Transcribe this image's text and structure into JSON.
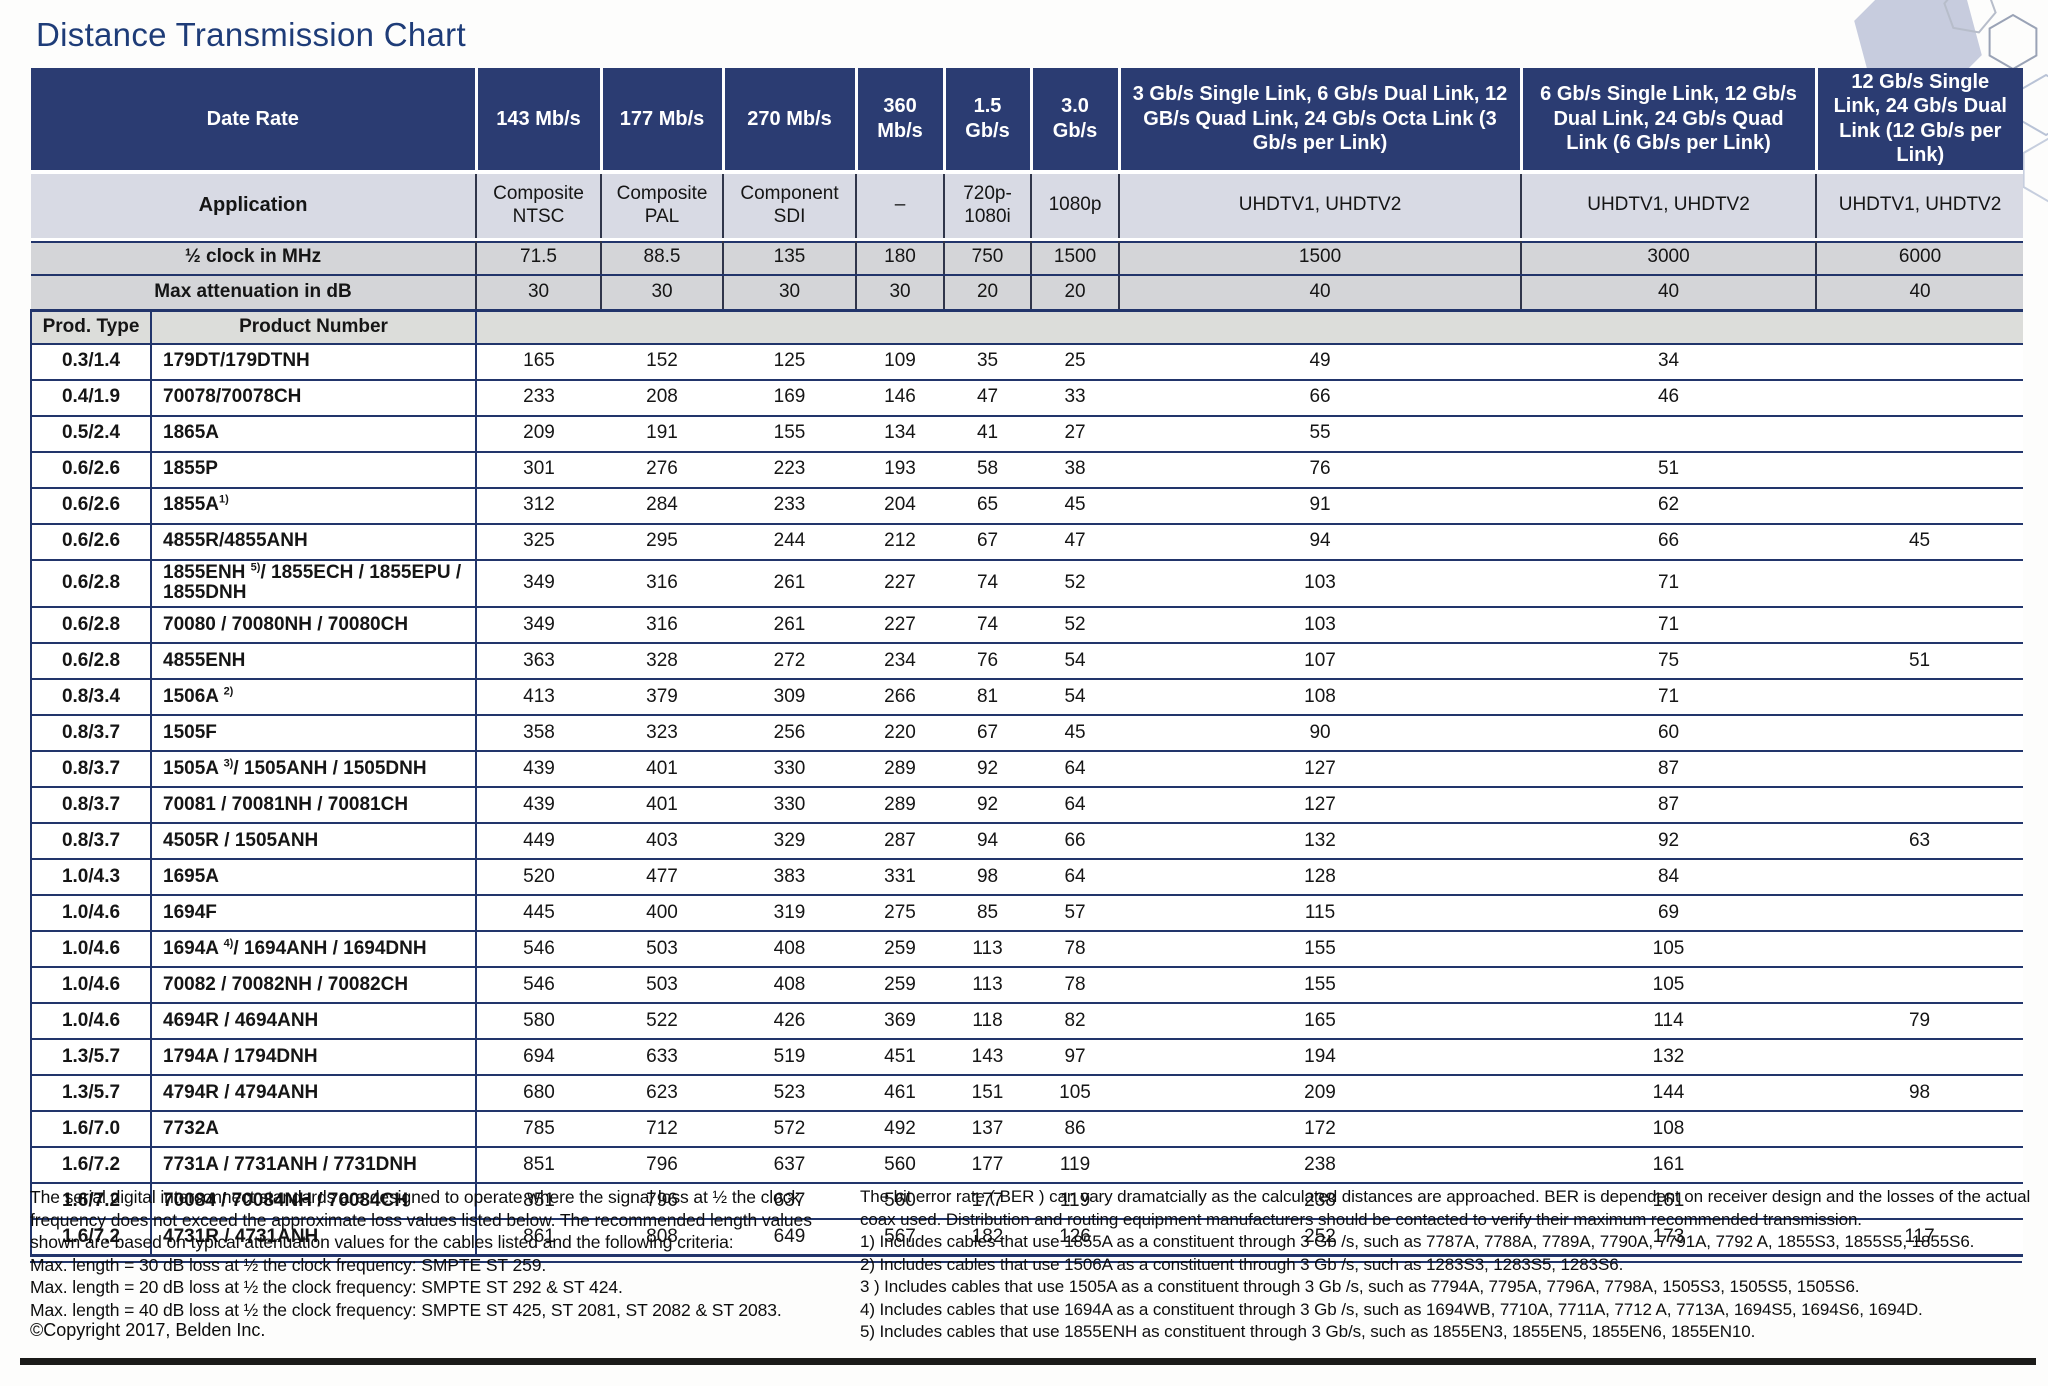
{
  "page": {
    "title": "Distance Transmission Chart"
  },
  "colors": {
    "header_navy": "#2b3c72",
    "rule_navy": "#22356b",
    "title_navy": "#1e3c78"
  },
  "table": {
    "header": {
      "date_rate_label": "Date Rate",
      "application_label": "Application",
      "half_clock_label": "½ clock in MHz",
      "max_atten_label": "Max attenuation in dB",
      "prod_type_label": "Prod. Type",
      "product_number_label": "Product Number",
      "columns": [
        {
          "rate": "143 Mb/s",
          "application": "Composite NTSC",
          "half_clock": "71.5",
          "max_atten": "30"
        },
        {
          "rate": "177 Mb/s",
          "application": "Composite PAL",
          "half_clock": "88.5",
          "max_atten": "30"
        },
        {
          "rate": "270 Mb/s",
          "application": "Component SDI",
          "half_clock": "135",
          "max_atten": "30"
        },
        {
          "rate": "360 Mb/s",
          "application": "–",
          "half_clock": "180",
          "max_atten": "30"
        },
        {
          "rate": "1.5 Gb/s",
          "application": "720p- 1080i",
          "half_clock": "750",
          "max_atten": "20"
        },
        {
          "rate": "3.0 Gb/s",
          "application": "1080p",
          "half_clock": "1500",
          "max_atten": "20"
        },
        {
          "rate": "3 Gb/s Single Link, 6 Gb/s Dual Link, 12 GB/s Quad Link, 24 Gb/s Octa Link (3 Gb/s per Link)",
          "application": "UHDTV1, UHDTV2",
          "half_clock": "1500",
          "max_atten": "40"
        },
        {
          "rate": "6 Gb/s Single Link, 12 Gb/s Dual Link, 24 Gb/s Quad Link (6 Gb/s per Link)",
          "application": "UHDTV1, UHDTV2",
          "half_clock": "3000",
          "max_atten": "40"
        },
        {
          "rate": "12 Gb/s Single Link, 24 Gb/s Dual Link (12 Gb/s per Link)",
          "application": "UHDTV1, UHDTV2",
          "half_clock": "6000",
          "max_atten": "40"
        }
      ]
    },
    "rows": [
      {
        "prod_type": "0.3/1.4",
        "product": {
          "pre": "179DT/179DTNH",
          "sup": "",
          "post": ""
        },
        "values": [
          "165",
          "152",
          "125",
          "109",
          "35",
          "25",
          "49",
          "34",
          ""
        ]
      },
      {
        "prod_type": "0.4/1.9",
        "product": {
          "pre": "70078/70078CH",
          "sup": "",
          "post": ""
        },
        "values": [
          "233",
          "208",
          "169",
          "146",
          "47",
          "33",
          "66",
          "46",
          ""
        ]
      },
      {
        "prod_type": "0.5/2.4",
        "product": {
          "pre": "1865A",
          "sup": "",
          "post": ""
        },
        "values": [
          "209",
          "191",
          "155",
          "134",
          "41",
          "27",
          "55",
          "",
          ""
        ]
      },
      {
        "prod_type": "0.6/2.6",
        "product": {
          "pre": "1855P",
          "sup": "",
          "post": ""
        },
        "values": [
          "301",
          "276",
          "223",
          "193",
          "58",
          "38",
          "76",
          "51",
          ""
        ]
      },
      {
        "prod_type": "0.6/2.6",
        "product": {
          "pre": "1855A",
          "sup": "1)",
          "post": ""
        },
        "values": [
          "312",
          "284",
          "233",
          "204",
          "65",
          "45",
          "91",
          "62",
          ""
        ]
      },
      {
        "prod_type": "0.6/2.6",
        "product": {
          "pre": "4855R/4855ANH",
          "sup": "",
          "post": ""
        },
        "values": [
          "325",
          "295",
          "244",
          "212",
          "67",
          "47",
          "94",
          "66",
          "45"
        ]
      },
      {
        "prod_type": "0.6/2.8",
        "product": {
          "pre": "1855ENH ",
          "sup": "5)",
          "post": "/ 1855ECH / 1855EPU / 1855DNH"
        },
        "values": [
          "349",
          "316",
          "261",
          "227",
          "74",
          "52",
          "103",
          "71",
          ""
        ]
      },
      {
        "prod_type": "0.6/2.8",
        "product": {
          "pre": "70080 / 70080NH / 70080CH",
          "sup": "",
          "post": ""
        },
        "values": [
          "349",
          "316",
          "261",
          "227",
          "74",
          "52",
          "103",
          "71",
          ""
        ]
      },
      {
        "prod_type": "0.6/2.8",
        "product": {
          "pre": "4855ENH",
          "sup": "",
          "post": ""
        },
        "values": [
          "363",
          "328",
          "272",
          "234",
          "76",
          "54",
          "107",
          "75",
          "51"
        ]
      },
      {
        "prod_type": "0.8/3.4",
        "product": {
          "pre": "1506A ",
          "sup": "2)",
          "post": ""
        },
        "values": [
          "413",
          "379",
          "309",
          "266",
          "81",
          "54",
          "108",
          "71",
          ""
        ]
      },
      {
        "prod_type": "0.8/3.7",
        "product": {
          "pre": "1505F",
          "sup": "",
          "post": ""
        },
        "values": [
          "358",
          "323",
          "256",
          "220",
          "67",
          "45",
          "90",
          "60",
          ""
        ]
      },
      {
        "prod_type": "0.8/3.7",
        "product": {
          "pre": "1505A ",
          "sup": "3)",
          "post": "/ 1505ANH / 1505DNH"
        },
        "values": [
          "439",
          "401",
          "330",
          "289",
          "92",
          "64",
          "127",
          "87",
          ""
        ]
      },
      {
        "prod_type": "0.8/3.7",
        "product": {
          "pre": "70081 / 70081NH / 70081CH",
          "sup": "",
          "post": ""
        },
        "values": [
          "439",
          "401",
          "330",
          "289",
          "92",
          "64",
          "127",
          "87",
          ""
        ]
      },
      {
        "prod_type": "0.8/3.7",
        "product": {
          "pre": "4505R / 1505ANH",
          "sup": "",
          "post": ""
        },
        "values": [
          "449",
          "403",
          "329",
          "287",
          "94",
          "66",
          "132",
          "92",
          "63"
        ]
      },
      {
        "prod_type": "1.0/4.3",
        "product": {
          "pre": "1695A",
          "sup": "",
          "post": ""
        },
        "values": [
          "520",
          "477",
          "383",
          "331",
          "98",
          "64",
          "128",
          "84",
          ""
        ]
      },
      {
        "prod_type": "1.0/4.6",
        "product": {
          "pre": "1694F",
          "sup": "",
          "post": ""
        },
        "values": [
          "445",
          "400",
          "319",
          "275",
          "85",
          "57",
          "115",
          "69",
          ""
        ]
      },
      {
        "prod_type": "1.0/4.6",
        "product": {
          "pre": "1694A ",
          "sup": "4)",
          "post": "/ 1694ANH / 1694DNH"
        },
        "values": [
          "546",
          "503",
          "408",
          "259",
          "113",
          "78",
          "155",
          "105",
          ""
        ]
      },
      {
        "prod_type": "1.0/4.6",
        "product": {
          "pre": "70082 / 70082NH / 70082CH",
          "sup": "",
          "post": ""
        },
        "values": [
          "546",
          "503",
          "408",
          "259",
          "113",
          "78",
          "155",
          "105",
          ""
        ]
      },
      {
        "prod_type": "1.0/4.6",
        "product": {
          "pre": "4694R / 4694ANH",
          "sup": "",
          "post": ""
        },
        "values": [
          "580",
          "522",
          "426",
          "369",
          "118",
          "82",
          "165",
          "114",
          "79"
        ]
      },
      {
        "prod_type": "1.3/5.7",
        "product": {
          "pre": "1794A / 1794DNH",
          "sup": "",
          "post": ""
        },
        "values": [
          "694",
          "633",
          "519",
          "451",
          "143",
          "97",
          "194",
          "132",
          ""
        ]
      },
      {
        "prod_type": "1.3/5.7",
        "product": {
          "pre": "4794R / 4794ANH",
          "sup": "",
          "post": ""
        },
        "values": [
          "680",
          "623",
          "523",
          "461",
          "151",
          "105",
          "209",
          "144",
          "98"
        ]
      },
      {
        "prod_type": "1.6/7.0",
        "product": {
          "pre": "7732A",
          "sup": "",
          "post": ""
        },
        "values": [
          "785",
          "712",
          "572",
          "492",
          "137",
          "86",
          "172",
          "108",
          ""
        ]
      },
      {
        "prod_type": "1.6/7.2",
        "product": {
          "pre": "7731A / 7731ANH / 7731DNH",
          "sup": "",
          "post": ""
        },
        "values": [
          "851",
          "796",
          "637",
          "560",
          "177",
          "119",
          "238",
          "161",
          ""
        ]
      },
      {
        "prod_type": "1.6/7.2",
        "product": {
          "pre": "70084 / 70084NH / 70084CH",
          "sup": "",
          "post": ""
        },
        "values": [
          "851",
          "796",
          "637",
          "560",
          "177",
          "119",
          "238",
          "161",
          ""
        ]
      },
      {
        "prod_type": "1.6/7.2",
        "product": {
          "pre": "4731R / 4731ANH",
          "sup": "",
          "post": ""
        },
        "values": [
          "861",
          "808",
          "649",
          "567",
          "182",
          "126",
          "252",
          "173",
          "117"
        ]
      }
    ]
  },
  "footer": {
    "left": {
      "intro": "The serial digital interconnect standards are designed to operate where the signal loss at ½ the clock frequency does not exceed the approximate loss values listed below. The recommended length values shown are based on typical attenuation values for the cables listed and the following criteria:",
      "criteria": [
        "Max. length = 30 dB loss at ½ the clock frequency: SMPTE ST 259.",
        "Max. length = 20 dB loss at ½ the clock frequency: SMPTE ST 292 & ST 424.",
        "Max. length = 40 dB loss at ½ the clock frequency: SMPTE ST 425, ST 2081, ST 2082 & ST 2083."
      ],
      "copyright": "©Copyright 2017, Belden Inc."
    },
    "right": {
      "intro": "The bit error rate ( BER ) can vary dramatcially as the calculated distances are approached. BER is dependent on receiver design and the losses of the actual coax used. Distribution and routing equipment manufacturers should be contacted to verify their maximum recommended transmission.",
      "notes": [
        "1) Includes cables that use 1855A as a constituent through 3 Gb /s, such as 7787A, 7788A, 7789A, 7790A, 7791A, 7792 A, 1855S3, 1855S5, 1855S6.",
        "2) Includes cables that use 1506A as a constituent through 3 Gb /s, such as 1283S3, 1283S5, 1283S6.",
        "3 ) Includes cables that use 1505A as a constituent through 3 Gb /s, such as 7794A, 7795A, 7796A, 7798A, 1505S3, 1505S5, 1505S6.",
        "4) Includes cables that use 1694A as a constituent through 3 Gb /s, such as 1694WB, 7710A, 7711A, 7712 A, 7713A, 1694S5, 1694S6, 1694D.",
        "5) Includes cables that use 1855ENH as constituent through 3 Gb/s, such as 1855EN3, 1855EN5, 1855EN6, 1855EN10."
      ]
    }
  }
}
